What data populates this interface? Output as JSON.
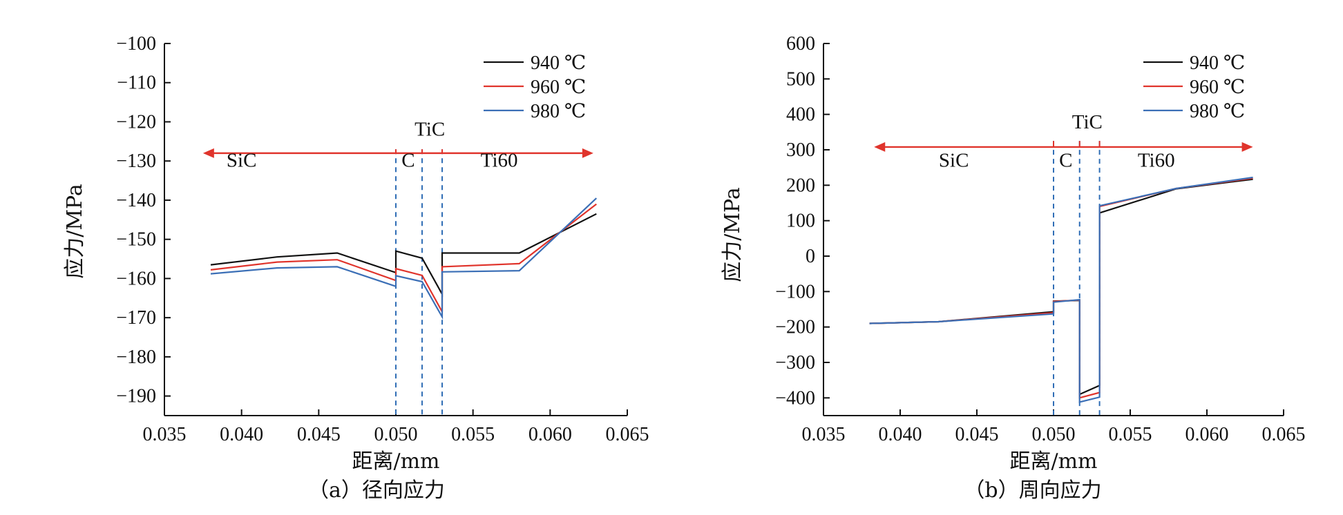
{
  "chart_data": [
    {
      "type": "line",
      "caption": "（a）径向应力",
      "xlabel": "距离/mm",
      "ylabel": "应力/MPa",
      "xlim": [
        0.035,
        0.065
      ],
      "ylim": [
        -195,
        -100
      ],
      "xticks": [
        "0.035",
        "0.040",
        "0.045",
        "0.050",
        "0.055",
        "0.060",
        "0.065"
      ],
      "xtick_values": [
        0.035,
        0.04,
        0.045,
        0.05,
        0.055,
        0.06,
        0.065
      ],
      "yticks": [
        "−100",
        "−110",
        "−120",
        "−130",
        "−140",
        "−150",
        "−160",
        "−170",
        "−180",
        "−190"
      ],
      "ytick_values": [
        -100,
        -110,
        -120,
        -130,
        -140,
        -150,
        -160,
        -170,
        -180,
        -190
      ],
      "legend_position": "top-right",
      "series": [
        {
          "name": "940 ℃",
          "color": "#111111",
          "x": [
            0.038,
            0.0423,
            0.0462,
            0.05,
            0.05,
            0.0517,
            0.053,
            0.053,
            0.058,
            0.063
          ],
          "y": [
            -156.5,
            -154.5,
            -153.5,
            -158.5,
            -153.0,
            -154.8,
            -164.0,
            -153.5,
            -153.5,
            -143.5
          ]
        },
        {
          "name": "960 ℃",
          "color": "#e0342c",
          "x": [
            0.038,
            0.0423,
            0.0462,
            0.05,
            0.05,
            0.0517,
            0.053,
            0.053,
            0.058,
            0.063
          ],
          "y": [
            -157.8,
            -155.8,
            -155.2,
            -160.5,
            -157.5,
            -159.2,
            -168.5,
            -157.0,
            -156.2,
            -141.0
          ]
        },
        {
          "name": "980 ℃",
          "color": "#3b6fb6",
          "x": [
            0.038,
            0.0423,
            0.0462,
            0.05,
            0.05,
            0.0517,
            0.053,
            0.053,
            0.058,
            0.063
          ],
          "y": [
            -158.8,
            -157.3,
            -157.0,
            -162.0,
            -159.3,
            -160.8,
            -169.8,
            -158.3,
            -158.0,
            -139.5
          ]
        }
      ],
      "regions": {
        "arrow_y": -128,
        "arrow_x": [
          0.0375,
          0.0628
        ],
        "arrow_color": "#e0342c",
        "boundaries": [
          0.05,
          0.0517,
          0.053
        ],
        "boundary_color": "#2f6db5",
        "boundary_top": -127,
        "labels": [
          {
            "text": "SiC",
            "x": 0.04,
            "y": -131.5
          },
          {
            "text": "C",
            "x": 0.0508,
            "y": -131.5
          },
          {
            "text": "TiC",
            "x": 0.0522,
            "y": -123.5
          },
          {
            "text": "Ti60",
            "x": 0.0567,
            "y": -131.5
          }
        ]
      }
    },
    {
      "type": "line",
      "caption": "（b）周向应力",
      "xlabel": "距离/mm",
      "ylabel": "应力/MPa",
      "xlim": [
        0.035,
        0.065
      ],
      "ylim": [
        -450,
        600
      ],
      "xticks": [
        "0.035",
        "0.040",
        "0.045",
        "0.050",
        "0.055",
        "0.060",
        "0.065"
      ],
      "xtick_values": [
        0.035,
        0.04,
        0.045,
        0.05,
        0.055,
        0.06,
        0.065
      ],
      "yticks": [
        "600",
        "500",
        "400",
        "300",
        "200",
        "100",
        "0",
        "−100",
        "−200",
        "−300",
        "−400"
      ],
      "ytick_values": [
        600,
        500,
        400,
        300,
        200,
        100,
        0,
        -100,
        -200,
        -300,
        -400
      ],
      "legend_position": "top-right",
      "series": [
        {
          "name": "940 ℃",
          "color": "#111111",
          "x": [
            0.038,
            0.0425,
            0.05,
            0.05,
            0.0517,
            0.0517,
            0.053,
            0.053,
            0.058,
            0.063
          ],
          "y": [
            -190,
            -185,
            -157,
            -127,
            -125,
            -390,
            -365,
            122,
            190,
            217
          ]
        },
        {
          "name": "960 ℃",
          "color": "#e0342c",
          "x": [
            0.038,
            0.0425,
            0.05,
            0.05,
            0.0517,
            0.0517,
            0.053,
            0.053,
            0.058,
            0.063
          ],
          "y": [
            -190,
            -185,
            -160,
            -128,
            -124,
            -400,
            -385,
            140,
            191,
            220
          ]
        },
        {
          "name": "980 ℃",
          "color": "#3b6fb6",
          "x": [
            0.038,
            0.0425,
            0.05,
            0.05,
            0.0517,
            0.0517,
            0.053,
            0.053,
            0.058,
            0.063
          ],
          "y": [
            -190,
            -185,
            -163,
            -130,
            -123,
            -412,
            -398,
            142,
            191,
            222
          ]
        }
      ],
      "regions": {
        "arrow_y": 308,
        "arrow_x": [
          0.0383,
          0.063
        ],
        "arrow_color": "#e0342c",
        "boundaries": [
          0.05,
          0.0517,
          0.053
        ],
        "boundary_color": "#2f6db5",
        "boundary_top": 325,
        "labels": [
          {
            "text": "SiC",
            "x": 0.0435,
            "y": 252
          },
          {
            "text": "C",
            "x": 0.0508,
            "y": 252
          },
          {
            "text": "TiC",
            "x": 0.0522,
            "y": 360
          },
          {
            "text": "Ti60",
            "x": 0.0567,
            "y": 252
          }
        ]
      }
    }
  ]
}
